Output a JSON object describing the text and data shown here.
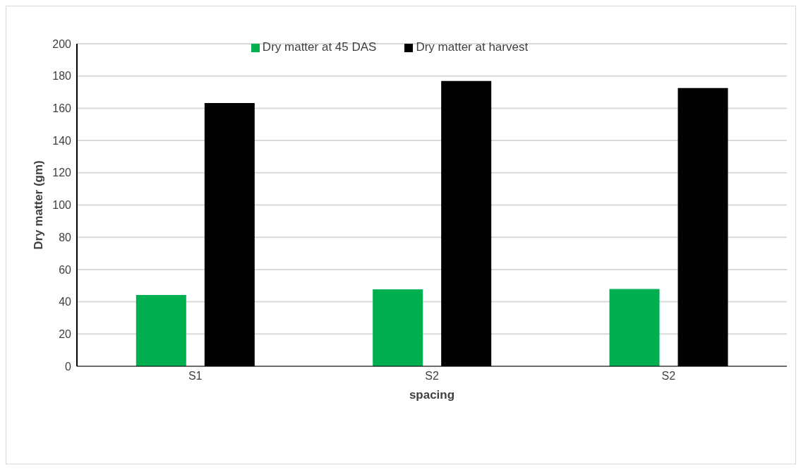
{
  "chart_data": {
    "type": "bar",
    "xlabel": "spacing",
    "ylabel": "Dry matter (gm)",
    "categories": [
      "S1",
      "S2",
      "S2"
    ],
    "series": [
      {
        "name": "Dry matter at 45 DAS",
        "color": "#00b050",
        "values": [
          44.2,
          47.7,
          47.9
        ]
      },
      {
        "name": "Dry matter at harvest",
        "color": "#000000",
        "values": [
          163.2,
          176.9,
          172.5
        ]
      }
    ],
    "ylim": [
      0,
      200
    ],
    "yticks": [
      0,
      20,
      40,
      60,
      80,
      100,
      120,
      140,
      160,
      180,
      200
    ],
    "grid": "y",
    "legend": "top"
  }
}
